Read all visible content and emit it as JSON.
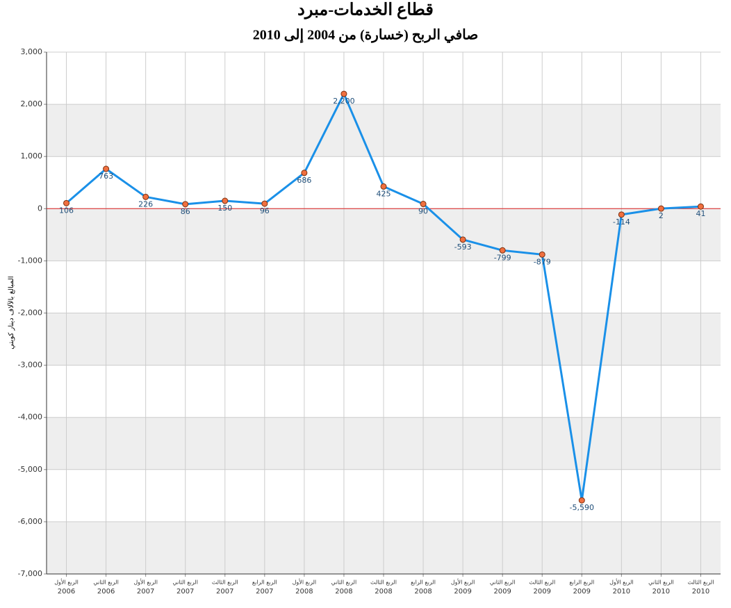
{
  "chart_data": {
    "type": "line",
    "title": "قطاع الخدمات-مبرد",
    "subtitle": "صافي الربح (خسارة) من 2004 إلى 2010",
    "y_axis_label": "المبالغ بالآلاف دينار كويتي",
    "categories": [
      [
        "الربع الأول",
        "2006"
      ],
      [
        "الربع الثاني",
        "2006"
      ],
      [
        "الربع الأول",
        "2007"
      ],
      [
        "الربع الثاني",
        "2007"
      ],
      [
        "الربع الثالث",
        "2007"
      ],
      [
        "الربع الرابع",
        "2007"
      ],
      [
        "الربع الأول",
        "2008"
      ],
      [
        "الربع الثاني",
        "2008"
      ],
      [
        "الربع الثالث",
        "2008"
      ],
      [
        "الربع الرابع",
        "2008"
      ],
      [
        "الربع الأول",
        "2009"
      ],
      [
        "الربع الثاني",
        "2009"
      ],
      [
        "الربع الثالث",
        "2009"
      ],
      [
        "الربع الرابع",
        "2009"
      ],
      [
        "الربع الأول",
        "2010"
      ],
      [
        "الربع الثاني",
        "2010"
      ],
      [
        "الربع الثالث",
        "2010"
      ]
    ],
    "values": [
      106,
      763,
      226,
      86,
      150,
      96,
      686,
      2200,
      425,
      90,
      -593,
      -799,
      -879,
      -5590,
      -114,
      2,
      41
    ],
    "value_labels": [
      "106",
      "763",
      "226",
      "86",
      "150",
      "96",
      "686",
      "2,200",
      "425",
      "90",
      "-593",
      "-799",
      "-879",
      "-5,590",
      "-114",
      "2",
      "41"
    ],
    "color": "#1a90e8",
    "marker_color": "#f07040",
    "zero_line_color": "#e02020",
    "ylim": [
      -7000,
      3000
    ],
    "yticks": [
      {
        "value": 3000,
        "label": "3,000"
      },
      {
        "value": 2000,
        "label": "2,000"
      },
      {
        "value": 1000,
        "label": "1,000"
      },
      0,
      {
        "value": -1000,
        "label": "-1,000"
      },
      {
        "value": -2000,
        "label": "-2,000"
      },
      {
        "value": -3000,
        "label": "-3,000"
      },
      {
        "value": -4000,
        "label": "-4,000"
      },
      {
        "value": -5000,
        "label": "-5,000"
      },
      {
        "value": -6000,
        "label": "-6,000"
      },
      {
        "value": -7000,
        "label": "-7,000"
      }
    ],
    "grid": true
  }
}
